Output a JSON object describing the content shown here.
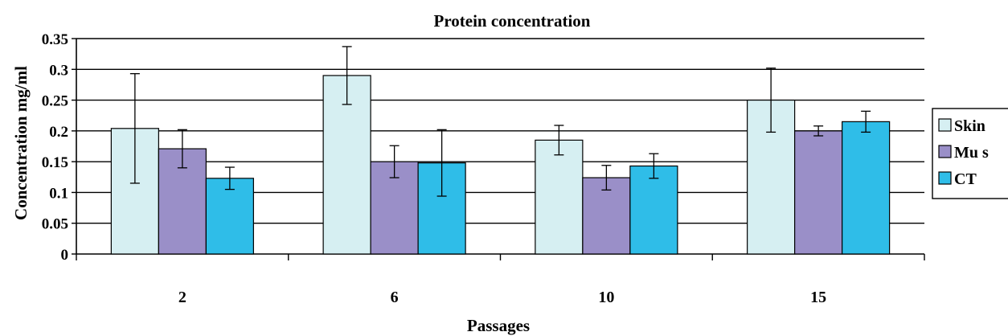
{
  "chart_data": {
    "type": "bar",
    "title": "Protein concentration",
    "xlabel": "Passages",
    "ylabel": "Concentration mg/ml",
    "categories": [
      "2",
      "6",
      "10",
      "15"
    ],
    "ylim": [
      0,
      0.35
    ],
    "yticks": [
      "0",
      "0.05",
      "0.1",
      "0.15",
      "0.2",
      "0.25",
      "0.3",
      "0.35"
    ],
    "grid": true,
    "legend_position": "right",
    "series": [
      {
        "name": "Skin",
        "color": "#d6eff2",
        "values": [
          0.204,
          0.29,
          0.185,
          0.25
        ],
        "errors": [
          0.089,
          0.047,
          0.024,
          0.052
        ]
      },
      {
        "name": "Mu s",
        "color": "#9a8fc8",
        "values": [
          0.171,
          0.15,
          0.124,
          0.2
        ],
        "errors": [
          0.031,
          0.026,
          0.02,
          0.008
        ]
      },
      {
        "name": "CT",
        "color": "#2fbde8",
        "values": [
          0.123,
          0.148,
          0.143,
          0.215
        ],
        "errors": [
          0.018,
          0.054,
          0.02,
          0.017
        ]
      }
    ]
  }
}
